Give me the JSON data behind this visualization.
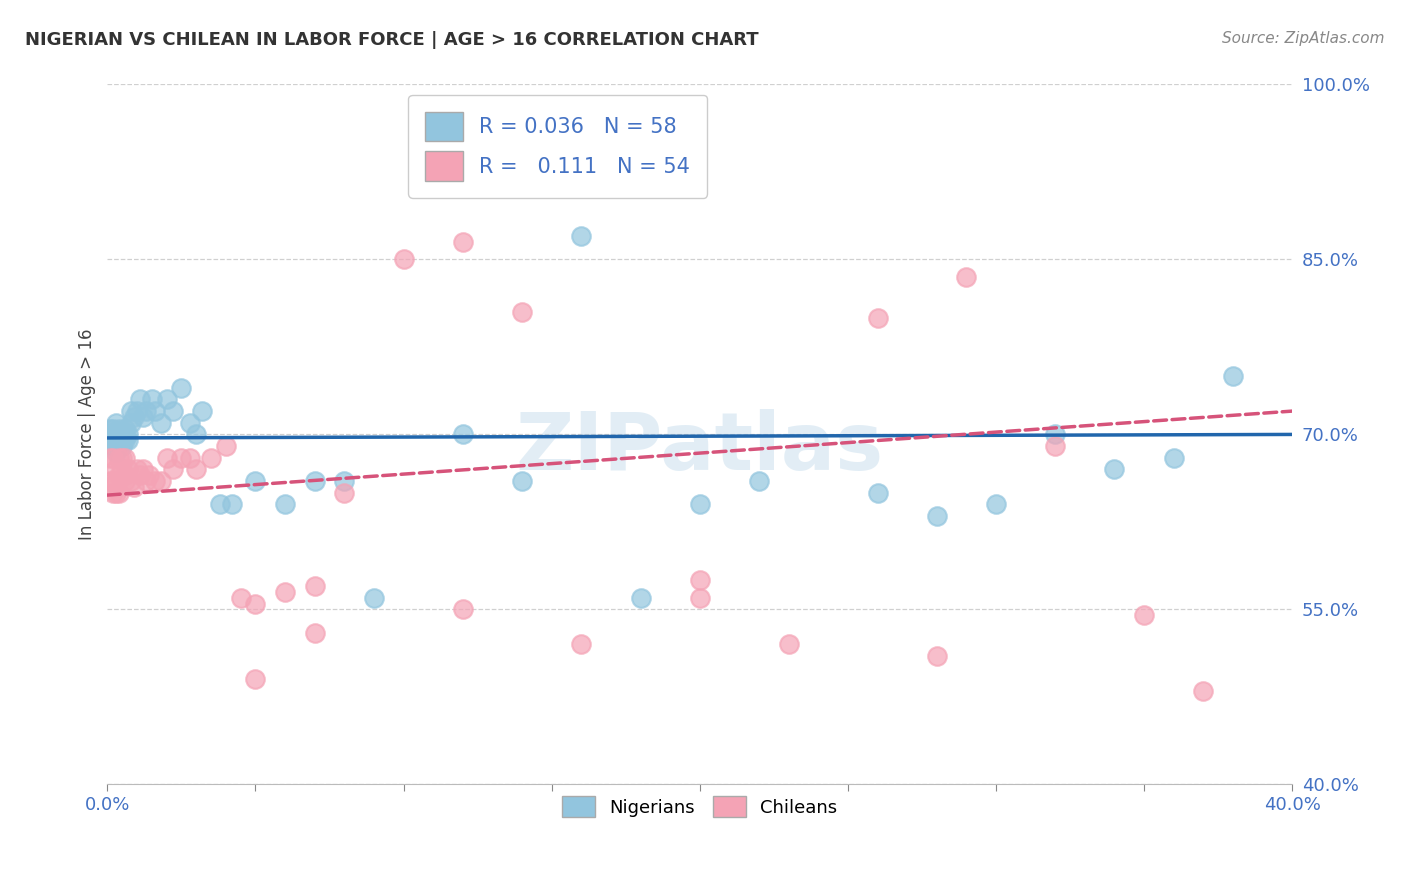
{
  "title": "NIGERIAN VS CHILEAN IN LABOR FORCE | AGE > 16 CORRELATION CHART",
  "source": "Source: ZipAtlas.com",
  "ylabel": "In Labor Force | Age > 16",
  "yticks": [
    40.0,
    55.0,
    70.0,
    85.0,
    100.0
  ],
  "R_nigerian": 0.036,
  "N_nigerian": 58,
  "R_chilean": 0.111,
  "N_chilean": 54,
  "nigerian_color": "#92c5de",
  "chilean_color": "#f4a3b5",
  "nigerian_line_color": "#2166ac",
  "chilean_line_color": "#d6537a",
  "bg_color": "#ffffff",
  "grid_color": "#d0d0d0",
  "watermark": "ZIPatlas",
  "legend_labels": [
    "Nigerians",
    "Chileans"
  ],
  "nigerian_x": [
    0.001,
    0.001,
    0.001,
    0.002,
    0.002,
    0.002,
    0.002,
    0.003,
    0.003,
    0.003,
    0.003,
    0.004,
    0.004,
    0.004,
    0.005,
    0.005,
    0.005,
    0.006,
    0.006,
    0.006,
    0.007,
    0.007,
    0.008,
    0.008,
    0.009,
    0.01,
    0.011,
    0.012,
    0.013,
    0.015,
    0.016,
    0.018,
    0.02,
    0.022,
    0.025,
    0.028,
    0.03,
    0.032,
    0.038,
    0.042,
    0.05,
    0.06,
    0.07,
    0.08,
    0.09,
    0.12,
    0.14,
    0.16,
    0.18,
    0.2,
    0.22,
    0.26,
    0.28,
    0.3,
    0.32,
    0.34,
    0.36,
    0.38
  ],
  "nigerian_y": [
    0.695,
    0.7,
    0.705,
    0.69,
    0.7,
    0.695,
    0.705,
    0.685,
    0.695,
    0.7,
    0.71,
    0.695,
    0.7,
    0.705,
    0.69,
    0.695,
    0.7,
    0.705,
    0.695,
    0.7,
    0.695,
    0.7,
    0.71,
    0.72,
    0.715,
    0.72,
    0.73,
    0.715,
    0.72,
    0.73,
    0.72,
    0.71,
    0.73,
    0.72,
    0.74,
    0.71,
    0.7,
    0.72,
    0.64,
    0.64,
    0.66,
    0.64,
    0.66,
    0.66,
    0.56,
    0.7,
    0.66,
    0.87,
    0.56,
    0.64,
    0.66,
    0.65,
    0.63,
    0.64,
    0.7,
    0.67,
    0.68,
    0.75
  ],
  "chilean_x": [
    0.001,
    0.001,
    0.002,
    0.002,
    0.002,
    0.003,
    0.003,
    0.003,
    0.004,
    0.004,
    0.004,
    0.005,
    0.005,
    0.006,
    0.006,
    0.006,
    0.007,
    0.008,
    0.009,
    0.01,
    0.011,
    0.012,
    0.013,
    0.014,
    0.016,
    0.018,
    0.02,
    0.022,
    0.025,
    0.028,
    0.03,
    0.035,
    0.04,
    0.045,
    0.05,
    0.06,
    0.07,
    0.08,
    0.1,
    0.12,
    0.14,
    0.16,
    0.2,
    0.23,
    0.26,
    0.29,
    0.32,
    0.35,
    0.37,
    0.05,
    0.07,
    0.12,
    0.2,
    0.28
  ],
  "chilean_y": [
    0.68,
    0.66,
    0.68,
    0.66,
    0.65,
    0.67,
    0.66,
    0.65,
    0.68,
    0.665,
    0.65,
    0.68,
    0.67,
    0.66,
    0.68,
    0.665,
    0.67,
    0.66,
    0.655,
    0.67,
    0.665,
    0.67,
    0.66,
    0.665,
    0.66,
    0.66,
    0.68,
    0.67,
    0.68,
    0.68,
    0.67,
    0.68,
    0.69,
    0.56,
    0.555,
    0.565,
    0.57,
    0.65,
    0.85,
    0.865,
    0.805,
    0.52,
    0.575,
    0.52,
    0.8,
    0.835,
    0.69,
    0.545,
    0.48,
    0.49,
    0.53,
    0.55,
    0.56,
    0.51
  ]
}
